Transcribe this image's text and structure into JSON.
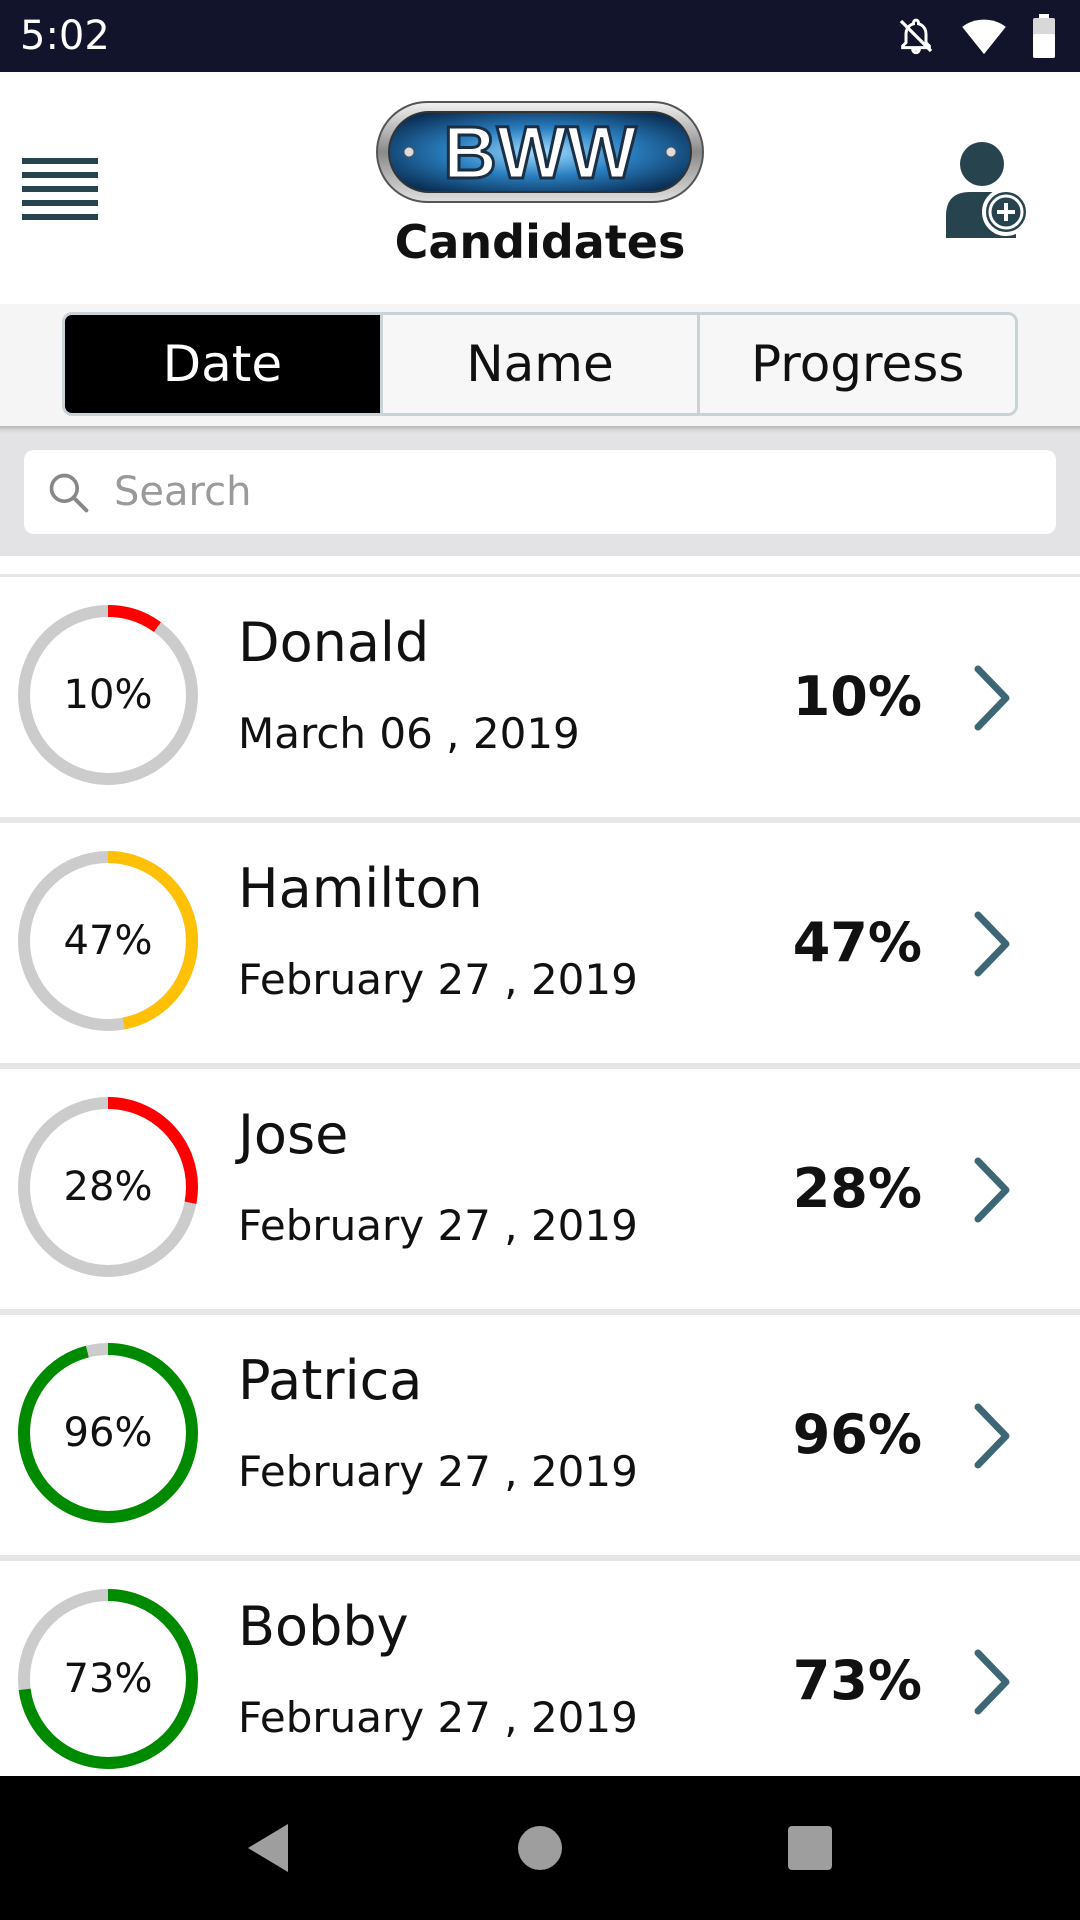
{
  "status_bar": {
    "time": "5:02",
    "icons": [
      "notifications-off-icon",
      "wifi-icon",
      "battery-icon"
    ]
  },
  "header": {
    "logo_text": "BWW",
    "title": "Candidates",
    "menu_icon": "hamburger-menu-icon",
    "add_icon": "add-user-icon"
  },
  "tabs": [
    {
      "label": "Date",
      "active": true
    },
    {
      "label": "Name",
      "active": false
    },
    {
      "label": "Progress",
      "active": false
    }
  ],
  "search": {
    "placeholder": "Search",
    "value": ""
  },
  "colors": {
    "low": "#ff0000",
    "mid": "#ffc107",
    "high": "#008a00",
    "track": "#cccccc",
    "chevron": "#3e6776",
    "accent_dark": "#27434e"
  },
  "candidates": [
    {
      "name": "Donald",
      "date": "March 06 , 2019",
      "progress_label": "10%",
      "progress": 10,
      "color": "#ff0000"
    },
    {
      "name": "Hamilton",
      "date": "February 27 , 2019",
      "progress_label": "47%",
      "progress": 47,
      "color": "#ffc107"
    },
    {
      "name": "Jose",
      "date": "February 27 , 2019",
      "progress_label": "28%",
      "progress": 28,
      "color": "#ff0000"
    },
    {
      "name": "Patrica",
      "date": "February 27 , 2019",
      "progress_label": "96%",
      "progress": 96,
      "color": "#008a00"
    },
    {
      "name": "Bobby",
      "date": "February 27 , 2019",
      "progress_label": "73%",
      "progress": 73,
      "color": "#008a00"
    }
  ],
  "nav_bar": {
    "icons": [
      "back-icon",
      "home-icon",
      "recents-icon"
    ]
  }
}
